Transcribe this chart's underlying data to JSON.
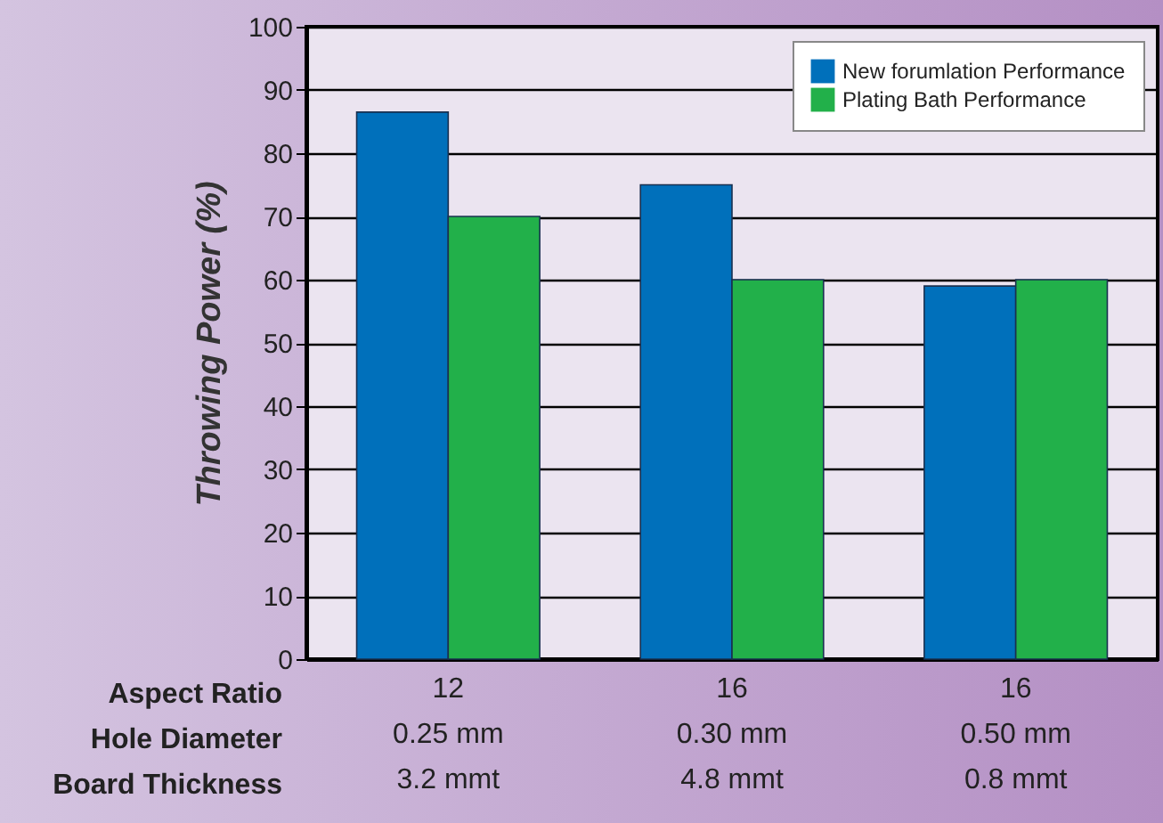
{
  "chart_data": {
    "type": "bar",
    "ylabel": "Throwing Power (%)",
    "categories": [
      "12\n0.25 mm\n3.2 mmt",
      "16\n0.30 mm\n4.8 mmt",
      "16\n0.50 mm\n0.8 mmt"
    ],
    "series": [
      {
        "name": "New forumlation Performance",
        "color": "#0070bb",
        "values": [
          86.5,
          75,
          59
        ]
      },
      {
        "name": "Plating Bath Performance",
        "color": "#22b04a",
        "values": [
          70,
          60,
          60
        ]
      }
    ],
    "annotations": [
      "Aspect Ratio",
      "Hole Diameter",
      "Board Thickness"
    ],
    "ylim": [
      0,
      100
    ],
    "yticks": [
      0,
      10,
      20,
      30,
      40,
      50,
      60,
      70,
      80,
      90,
      100
    ],
    "grid": "y",
    "legend": "top right"
  }
}
